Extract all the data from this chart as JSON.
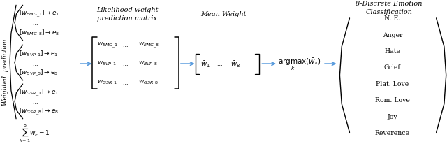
{
  "bg_color": "#ffffff",
  "arrow_color": "#5599dd",
  "left_groups": {
    "emg": [
      "$[w_{EMG\\_1}] \\rightarrow e_1$",
      "$[w_{EMG\\_8}] \\rightarrow e_8$"
    ],
    "bvp": [
      "$[w_{BVP\\_1}] \\rightarrow e_1$",
      "$[w_{BVP\\_8}] \\rightarrow e_8$"
    ],
    "gsr": [
      "$[w_{GSR\\_1}] \\rightarrow e_1$",
      "$[w_{GSR\\_8}] \\rightarrow e_8$"
    ]
  },
  "sum_label": "$\\sum_{k=1}^{8} w_k = 1$",
  "weighted_label": "Weighted  prediction",
  "likelihood_label": "Likelihood weight\nprediction matrix",
  "mean_label": "Mean Weight",
  "discrete_label": "8-Discrete Emotion\nClassification",
  "matrix_rows": [
    [
      "$w_{EMG\\_1}$",
      "$\\cdots$",
      "$w_{EMG\\_8}$"
    ],
    [
      "$w_{BVP\\_1}$",
      "$\\cdots$",
      "$w_{BVP\\_8}$"
    ],
    [
      "$w_{GSR\\_1}$",
      "$\\cdots$",
      "$w_{GSR\\_8}$"
    ]
  ],
  "mean_vec_parts": [
    "$[\\bar{w}_1$",
    "$\\cdots$",
    "$\\bar{w}_8]$"
  ],
  "argmax_label": "$\\underset{k}{\\mathrm{argmax}}(\\bar{w}_k)$",
  "emotions": [
    "N. E.",
    "Anger",
    "Hate",
    "Grief",
    "Plat. Love",
    "Rom. Love",
    "Joy",
    "Reverence"
  ],
  "fontsize": 7.0
}
